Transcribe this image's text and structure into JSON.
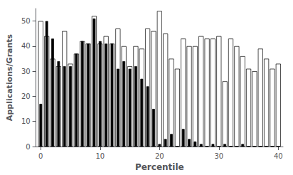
{
  "chart_data": {
    "type": "bar",
    "xlabel": "Percentile",
    "ylabel": "Applications/Grants",
    "x": [
      0,
      1,
      2,
      3,
      4,
      5,
      6,
      7,
      8,
      9,
      10,
      11,
      12,
      13,
      14,
      15,
      16,
      17,
      18,
      19,
      20,
      21,
      22,
      23,
      24,
      25,
      26,
      27,
      28,
      29,
      30,
      31,
      32,
      33,
      34,
      35,
      36,
      37,
      38,
      39,
      40
    ],
    "series": [
      {
        "color": "white",
        "values": [
          50,
          44,
          35,
          32,
          46,
          33,
          37,
          42,
          41,
          52,
          41,
          44,
          41,
          47,
          40,
          32,
          40,
          39,
          47,
          46,
          54,
          45,
          35,
          31,
          43,
          40,
          40,
          44,
          43,
          43,
          44,
          26,
          43,
          40,
          36,
          31,
          30,
          39,
          35,
          31,
          33
        ]
      },
      {
        "color": "black",
        "values": [
          17,
          50,
          43,
          34,
          32,
          32,
          37,
          42,
          41,
          51,
          42,
          41,
          41,
          31,
          34,
          31,
          32,
          27,
          24,
          15,
          1,
          3,
          5,
          0,
          7,
          3,
          2,
          1,
          0,
          1,
          0,
          1,
          0,
          0,
          1,
          0,
          0,
          0,
          0,
          0,
          0
        ]
      }
    ],
    "xlim": [
      -0.8,
      40.8
    ],
    "xticks": [
      0,
      10,
      20,
      30,
      40
    ],
    "ylim": [
      0,
      55
    ],
    "yticks": [
      0,
      10,
      20,
      30,
      40,
      50
    ],
    "grid": false
  }
}
